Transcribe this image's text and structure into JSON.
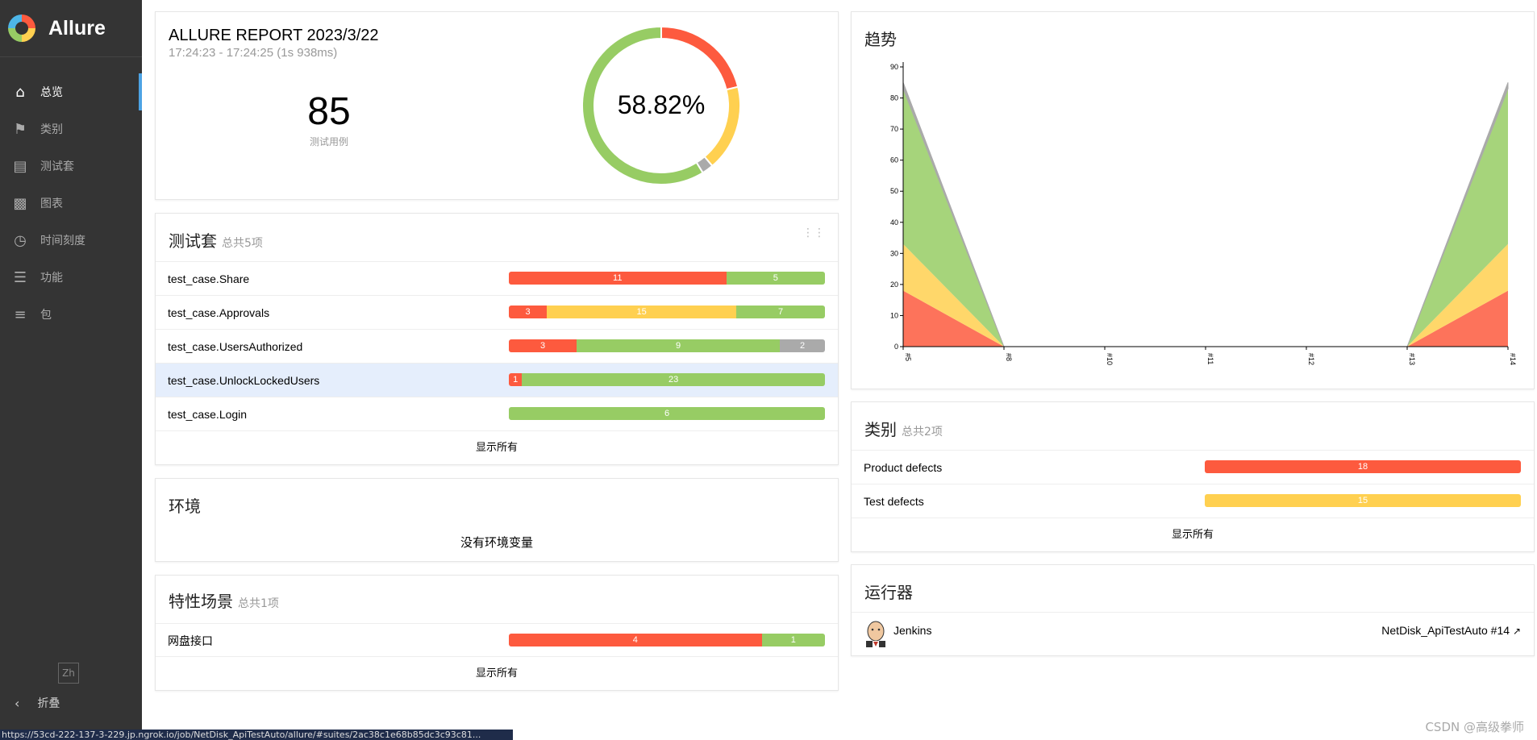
{
  "app": {
    "name": "Allure"
  },
  "sidebar": {
    "items": [
      {
        "label": "总览",
        "icon": "home-icon",
        "active": true
      },
      {
        "label": "类别",
        "icon": "flag-icon"
      },
      {
        "label": "测试套",
        "icon": "briefcase-icon"
      },
      {
        "label": "图表",
        "icon": "bar-chart-icon"
      },
      {
        "label": "时间刻度",
        "icon": "clock-icon"
      },
      {
        "label": "功能",
        "icon": "list-icon"
      },
      {
        "label": "包",
        "icon": "align-left-icon"
      }
    ],
    "lang": "Zh",
    "collapse_label": "折叠"
  },
  "summary": {
    "title": "ALLURE REPORT 2023/3/22",
    "time": "17:24:23 - 17:24:25 (1s 938ms)",
    "total": "85",
    "total_label": "测试用例",
    "percent": "58.82%",
    "donut": {
      "failed": 18,
      "broken": 15,
      "skipped": 2,
      "passed": 50
    }
  },
  "suites": {
    "title": "测试套",
    "count": "总共5项",
    "rows": [
      {
        "name": "test_case.Share",
        "segs": [
          {
            "c": "red",
            "v": 11
          },
          {
            "c": "green",
            "v": 5
          }
        ]
      },
      {
        "name": "test_case.Approvals",
        "segs": [
          {
            "c": "red",
            "v": 3
          },
          {
            "c": "yellow",
            "v": 15
          },
          {
            "c": "green",
            "v": 7
          }
        ]
      },
      {
        "name": "test_case.UsersAuthorized",
        "segs": [
          {
            "c": "red",
            "v": 3
          },
          {
            "c": "green",
            "v": 9
          },
          {
            "c": "gray",
            "v": 2
          }
        ]
      },
      {
        "name": "test_case.UnlockLockedUsers",
        "segs": [
          {
            "c": "red",
            "v": 1
          },
          {
            "c": "green",
            "v": 23
          }
        ],
        "highlight": true
      },
      {
        "name": "test_case.Login",
        "segs": [
          {
            "c": "green",
            "v": 6
          }
        ]
      }
    ],
    "show_all": "显示所有"
  },
  "environment": {
    "title": "环境",
    "empty": "没有环境变量"
  },
  "features": {
    "title": "特性场景",
    "count": "总共1项",
    "rows": [
      {
        "name": "网盘接口",
        "segs": [
          {
            "c": "red",
            "v": 4
          },
          {
            "c": "green",
            "v": 1
          }
        ]
      }
    ],
    "show_all": "显示所有"
  },
  "trend": {
    "title": "趋势"
  },
  "chart_data": {
    "type": "area",
    "x": [
      "#5",
      "#8",
      "#10",
      "#11",
      "#12",
      "#13",
      "#14"
    ],
    "series": [
      {
        "values": [
          18,
          0,
          0,
          0,
          0,
          0,
          18
        ]
      },
      {
        "values": [
          15,
          0,
          0,
          0,
          0,
          0,
          15
        ]
      },
      {
        "values": [
          50,
          0,
          0,
          0,
          0,
          0,
          50
        ]
      },
      {
        "values": [
          2,
          0,
          0,
          0,
          0,
          0,
          2
        ]
      }
    ],
    "colors": [
      "#fd5a3e",
      "#ffd050",
      "#97cc64",
      "#aaaaaa"
    ],
    "yticks": [
      "0",
      "10",
      "20",
      "30",
      "40",
      "50",
      "60",
      "70",
      "80",
      "90"
    ],
    "ylim": [
      0,
      90
    ]
  },
  "categories": {
    "title": "类别",
    "count": "总共2项",
    "rows": [
      {
        "name": "Product defects",
        "segs": [
          {
            "c": "red",
            "v": 18
          }
        ]
      },
      {
        "name": "Test defects",
        "segs": [
          {
            "c": "yellow",
            "v": 15
          }
        ]
      }
    ],
    "show_all": "显示所有"
  },
  "executors": {
    "title": "运行器",
    "name": "Jenkins",
    "build": "NetDisk_ApiTestAuto #14"
  },
  "status_url": "https://53cd-222-137-3-229.jp.ngrok.io/job/NetDisk_ApiTestAuto/allure/#suites/2ac38c1e68b85dc3c93c81...",
  "watermark": "CSDN @高级拳师"
}
